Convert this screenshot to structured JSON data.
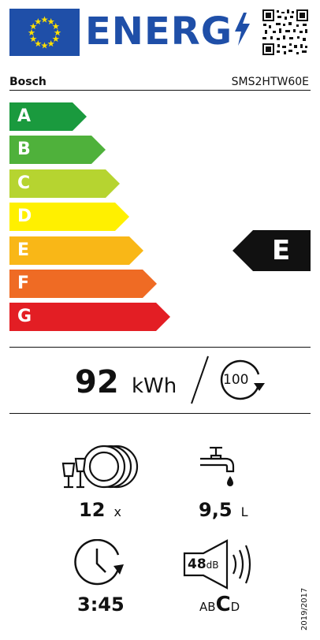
{
  "header": {
    "title": "ENERG",
    "flag_color": "#1f4fa8",
    "star_color": "#ffe000"
  },
  "supplier": "Bosch",
  "model": "SMS2HTW60E",
  "scale": [
    {
      "letter": "A",
      "color": "#1a9a3e"
    },
    {
      "letter": "B",
      "color": "#4fb13b"
    },
    {
      "letter": "C",
      "color": "#b6d430"
    },
    {
      "letter": "D",
      "color": "#fff000"
    },
    {
      "letter": "E",
      "color": "#f9b717"
    },
    {
      "letter": "F",
      "color": "#ef6b24"
    },
    {
      "letter": "G",
      "color": "#e31e24"
    }
  ],
  "rating": "E",
  "energy": {
    "value": "92",
    "unit": "kWh",
    "cycles": "100"
  },
  "metrics": {
    "place_settings": {
      "value": "12",
      "unit": "x",
      "icon": "dish-rack-icon"
    },
    "water": {
      "value": "9,5",
      "unit": "L",
      "icon": "water-tap-icon"
    },
    "duration": {
      "value": "3:45",
      "icon": "clock-icon"
    },
    "noise": {
      "value": "48",
      "unit": "dB",
      "icon": "speaker-icon",
      "classes_pre": "AB",
      "class_active": "C",
      "classes_post": "D"
    }
  },
  "regulation": "2019/2017"
}
